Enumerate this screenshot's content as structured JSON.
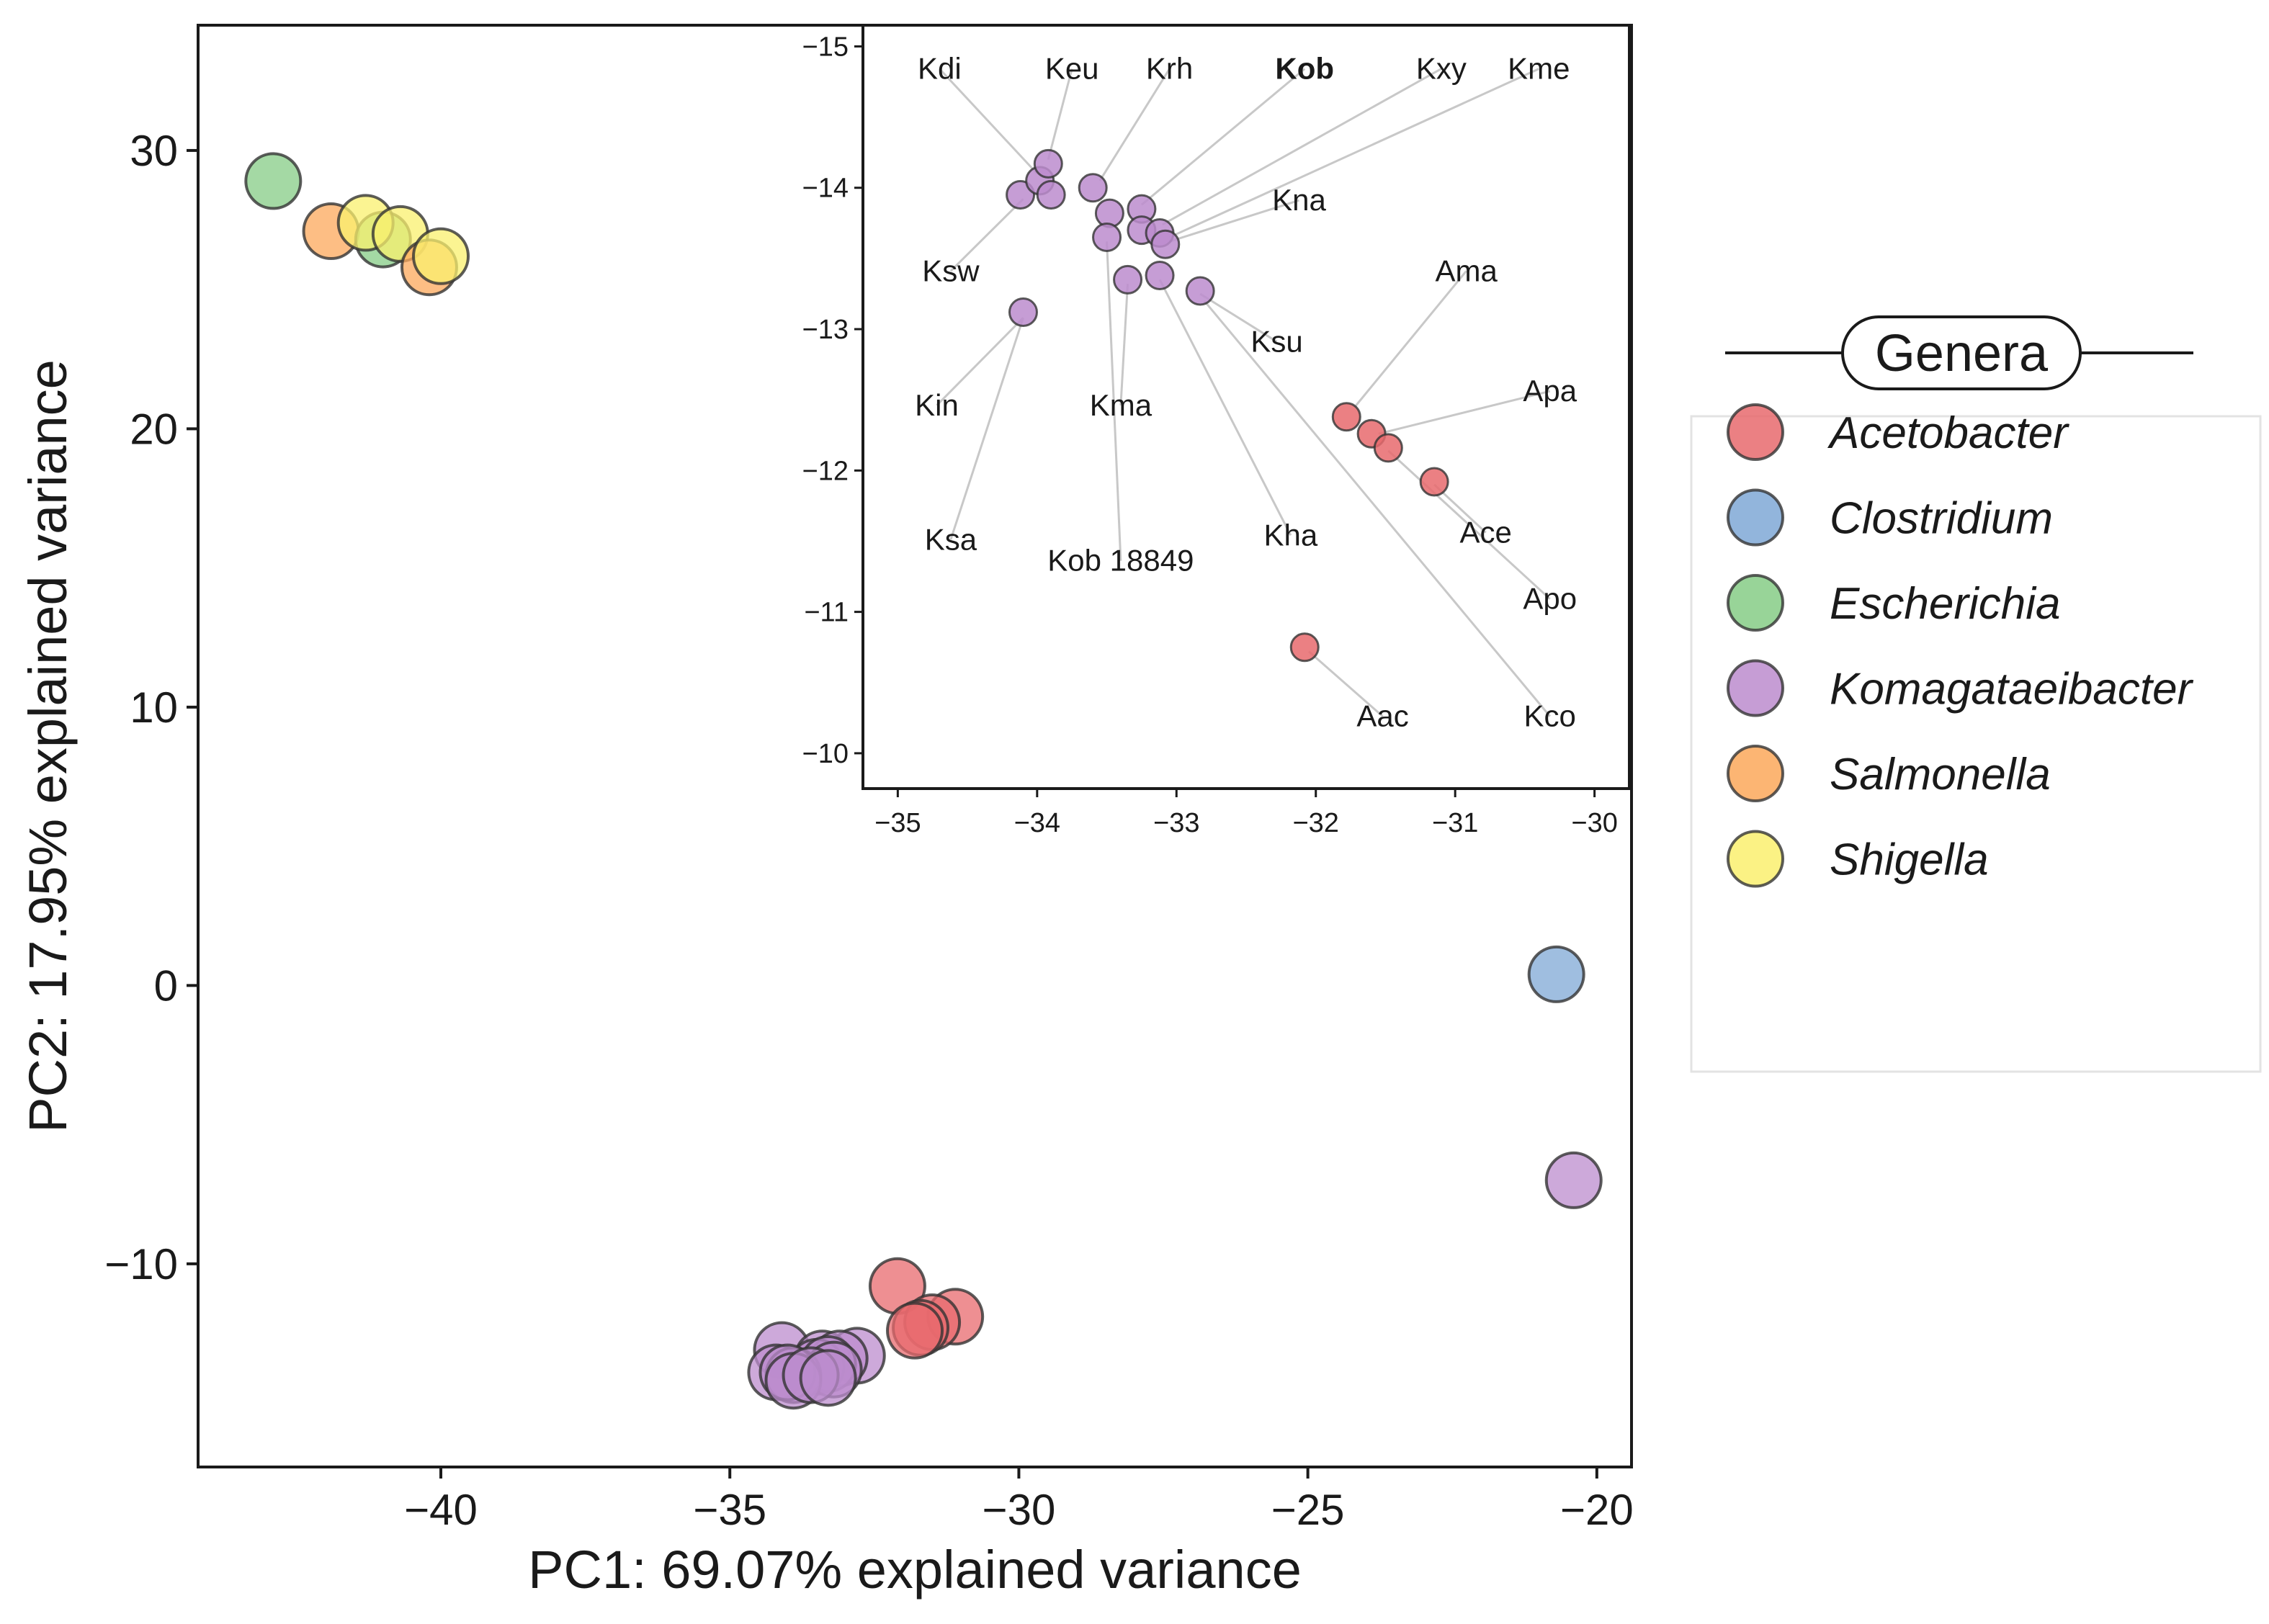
{
  "chart_data": [
    {
      "id": "main",
      "type": "scatter",
      "xlabel": "PC1: 69.07% explained variance",
      "ylabel": "PC2: 17.95% explained variance",
      "xlim": [
        -44.2,
        -19.4
      ],
      "ylim": [
        -17.3,
        34.5
      ],
      "xticks": [
        -40,
        -35,
        -30,
        -25,
        -20
      ],
      "yticks": [
        -10,
        0,
        10,
        20,
        30
      ],
      "tick_labels_x": [
        "−40",
        "−35",
        "−30",
        "−25",
        "−20"
      ],
      "tick_labels_y": [
        "−10",
        "0",
        "10",
        "20",
        "30"
      ],
      "points": [
        {
          "x": -42.9,
          "y": 28.9,
          "genus": "Escherichia"
        },
        {
          "x": -41.9,
          "y": 27.1,
          "genus": "Salmonella"
        },
        {
          "x": -41.0,
          "y": 26.8,
          "genus": "Escherichia"
        },
        {
          "x": -41.3,
          "y": 27.4,
          "genus": "Shigella"
        },
        {
          "x": -40.7,
          "y": 27.0,
          "genus": "Shigella"
        },
        {
          "x": -40.2,
          "y": 25.8,
          "genus": "Salmonella"
        },
        {
          "x": -40.0,
          "y": 26.2,
          "genus": "Shigella"
        },
        {
          "x": -20.7,
          "y": 0.4,
          "genus": "Clostridium"
        },
        {
          "x": -20.4,
          "y": -7.0,
          "genus": "Komagataeibacter"
        },
        {
          "x": -32.1,
          "y": -10.8,
          "genus": "Acetobacter"
        },
        {
          "x": -31.1,
          "y": -11.9,
          "genus": "Acetobacter"
        },
        {
          "x": -31.5,
          "y": -12.1,
          "genus": "Acetobacter"
        },
        {
          "x": -31.7,
          "y": -12.3,
          "genus": "Acetobacter"
        },
        {
          "x": -31.8,
          "y": -12.4,
          "genus": "Acetobacter"
        },
        {
          "x": -34.1,
          "y": -13.1,
          "genus": "Komagataeibacter"
        },
        {
          "x": -32.8,
          "y": -13.3,
          "genus": "Komagataeibacter"
        },
        {
          "x": -33.4,
          "y": -13.4,
          "genus": "Komagataeibacter"
        },
        {
          "x": -33.1,
          "y": -13.4,
          "genus": "Komagataeibacter"
        },
        {
          "x": -33.5,
          "y": -13.7,
          "genus": "Komagataeibacter"
        },
        {
          "x": -33.3,
          "y": -13.6,
          "genus": "Komagataeibacter"
        },
        {
          "x": -33.2,
          "y": -13.8,
          "genus": "Komagataeibacter"
        },
        {
          "x": -34.2,
          "y": -13.9,
          "genus": "Komagataeibacter"
        },
        {
          "x": -33.9,
          "y": -14.0,
          "genus": "Komagataeibacter"
        },
        {
          "x": -34.0,
          "y": -13.9,
          "genus": "Komagataeibacter"
        },
        {
          "x": -33.9,
          "y": -14.2,
          "genus": "Komagataeibacter"
        },
        {
          "x": -33.6,
          "y": -14.0,
          "genus": "Komagataeibacter"
        },
        {
          "x": -33.3,
          "y": -14.1,
          "genus": "Komagataeibacter"
        }
      ]
    },
    {
      "id": "inset",
      "type": "scatter",
      "xlim": [
        -35.25,
        -29.75
      ],
      "ylim": [
        -15.15,
        -9.75
      ],
      "y_reversed": true,
      "xticks": [
        -35,
        -34,
        -33,
        -32,
        -31,
        -30
      ],
      "yticks": [
        -15,
        -14,
        -13,
        -12,
        -11,
        -10
      ],
      "tick_labels_x": [
        "−35",
        "−34",
        "−33",
        "−32",
        "−31",
        "−30"
      ],
      "tick_labels_y": [
        "−15",
        "−14",
        "−13",
        "−12",
        "−11",
        "−10"
      ],
      "points": [
        {
          "x": -34.12,
          "y": -13.95,
          "genus": "Komagataeibacter"
        },
        {
          "x": -33.98,
          "y": -14.05,
          "genus": "Komagataeibacter"
        },
        {
          "x": -33.92,
          "y": -14.17,
          "genus": "Komagataeibacter"
        },
        {
          "x": -33.9,
          "y": -13.95,
          "genus": "Komagataeibacter"
        },
        {
          "x": -33.6,
          "y": -14.0,
          "genus": "Komagataeibacter"
        },
        {
          "x": -33.48,
          "y": -13.82,
          "genus": "Komagataeibacter"
        },
        {
          "x": -33.5,
          "y": -13.65,
          "genus": "Komagataeibacter"
        },
        {
          "x": -33.25,
          "y": -13.85,
          "genus": "Komagataeibacter"
        },
        {
          "x": -33.25,
          "y": -13.7,
          "genus": "Komagataeibacter"
        },
        {
          "x": -33.12,
          "y": -13.68,
          "genus": "Komagataeibacter"
        },
        {
          "x": -33.08,
          "y": -13.6,
          "genus": "Komagataeibacter"
        },
        {
          "x": -33.35,
          "y": -13.35,
          "genus": "Komagataeibacter"
        },
        {
          "x": -33.12,
          "y": -13.38,
          "genus": "Komagataeibacter"
        },
        {
          "x": -32.83,
          "y": -13.27,
          "genus": "Komagataeibacter"
        },
        {
          "x": -34.1,
          "y": -13.12,
          "genus": "Komagataeibacter"
        },
        {
          "x": -31.78,
          "y": -12.38,
          "genus": "Acetobacter"
        },
        {
          "x": -31.6,
          "y": -12.26,
          "genus": "Acetobacter"
        },
        {
          "x": -31.48,
          "y": -12.16,
          "genus": "Acetobacter"
        },
        {
          "x": -31.15,
          "y": -11.92,
          "genus": "Acetobacter"
        },
        {
          "x": -32.08,
          "y": -10.75,
          "genus": "Acetobacter"
        }
      ],
      "labels": [
        {
          "text": "Kdi",
          "x": -34.7,
          "y": -14.77,
          "tx": -34.0,
          "ty": -14.1,
          "bold": false
        },
        {
          "text": "Keu",
          "x": -33.75,
          "y": -14.77,
          "tx": -33.92,
          "ty": -14.2,
          "bold": false
        },
        {
          "text": "Krh",
          "x": -33.05,
          "y": -14.77,
          "tx": -33.55,
          "ty": -14.05,
          "bold": false
        },
        {
          "text": "Kob",
          "x": -32.08,
          "y": -14.77,
          "tx": -33.25,
          "ty": -13.88,
          "bold": true
        },
        {
          "text": "Kxy",
          "x": -31.1,
          "y": -14.77,
          "tx": -33.1,
          "ty": -13.74,
          "bold": false
        },
        {
          "text": "Kme",
          "x": -30.4,
          "y": -14.77,
          "tx": -33.05,
          "ty": -13.65,
          "bold": false
        },
        {
          "text": "Kna",
          "x": -32.12,
          "y": -13.84,
          "tx": -33.05,
          "ty": -13.62,
          "bold": false
        },
        {
          "text": "Ksw",
          "x": -34.62,
          "y": -13.34,
          "tx": -34.1,
          "ty": -13.92,
          "bold": false
        },
        {
          "text": "Ksu",
          "x": -32.28,
          "y": -12.84,
          "tx": -32.83,
          "ty": -13.25,
          "bold": false
        },
        {
          "text": "Ama",
          "x": -30.92,
          "y": -13.34,
          "tx": -31.72,
          "ty": -12.45,
          "bold": false
        },
        {
          "text": "Kin",
          "x": -34.72,
          "y": -12.39,
          "tx": -34.1,
          "ty": -13.08,
          "bold": false
        },
        {
          "text": "Kma",
          "x": -33.4,
          "y": -12.39,
          "tx": -33.35,
          "ty": -13.32,
          "bold": false
        },
        {
          "text": "Apa",
          "x": -30.32,
          "y": -12.49,
          "tx": -31.55,
          "ty": -12.26,
          "bold": false
        },
        {
          "text": "Ace",
          "x": -30.78,
          "y": -11.49,
          "tx": -31.15,
          "ty": -11.9,
          "bold": false
        },
        {
          "text": "Ksa",
          "x": -34.62,
          "y": -11.44,
          "tx": -34.1,
          "ty": -13.08,
          "bold": false
        },
        {
          "text": "Kob 18849",
          "x": -33.4,
          "y": -11.29,
          "tx": -33.5,
          "ty": -13.62,
          "bold": false
        },
        {
          "text": "Kha",
          "x": -32.18,
          "y": -11.47,
          "tx": -33.12,
          "ty": -13.35,
          "bold": false
        },
        {
          "text": "Apo",
          "x": -30.32,
          "y": -11.02,
          "tx": -31.48,
          "ty": -12.14,
          "bold": false
        },
        {
          "text": "Aac",
          "x": -31.52,
          "y": -10.19,
          "tx": -32.05,
          "ty": -10.72,
          "bold": false
        },
        {
          "text": "Kco",
          "x": -30.32,
          "y": -10.19,
          "tx": -32.8,
          "ty": -13.2,
          "bold": false
        }
      ]
    }
  ],
  "legend": {
    "title": "Genera",
    "items": [
      {
        "label": "Acetobacter",
        "color": "#e86a6d"
      },
      {
        "label": "Clostridium",
        "color": "#7fa8d6"
      },
      {
        "label": "Escherichia",
        "color": "#86cc86"
      },
      {
        "label": "Komagataeibacter",
        "color": "#bc8cce"
      },
      {
        "label": "Salmonella",
        "color": "#fca85b"
      },
      {
        "label": "Shigella",
        "color": "#faf06e"
      }
    ]
  },
  "colors": {
    "Acetobacter_dark": "#d7191c",
    "Komagataeibacter_dark": "#7b2d8e",
    "marker_stroke": "#333333",
    "axis": "#1a1a1a",
    "leader_line": "#c8c8c8"
  }
}
